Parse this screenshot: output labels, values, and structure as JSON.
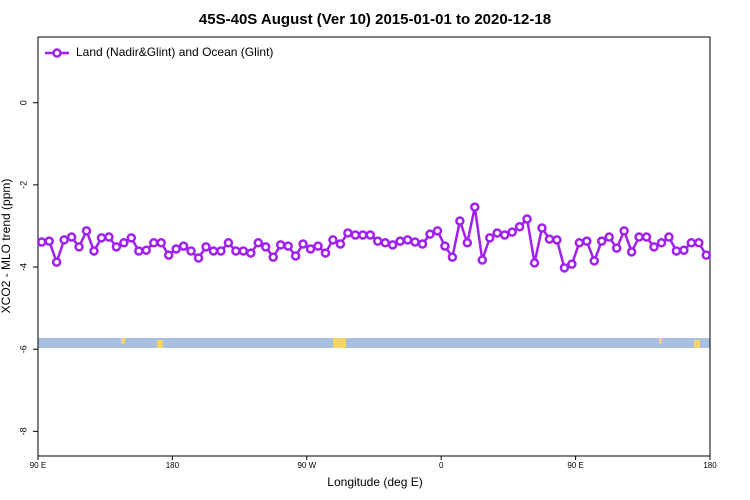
{
  "chart_data": {
    "type": "line",
    "title": "45S-40S August (Ver 10)   2015-01-01 to 2020-12-18",
    "x_label": "Longitude (deg E)",
    "y_label": "XCO2 - MLO trend (ppm)",
    "x": [
      92.5,
      97.5,
      102.5,
      107.5,
      112.5,
      117.5,
      122.5,
      127.5,
      132.5,
      137.5,
      142.5,
      147.5,
      152.5,
      157.5,
      162.5,
      167.5,
      172.5,
      177.5,
      182.5,
      187.5,
      192.5,
      197.5,
      202.5,
      207.5,
      212.5,
      217.5,
      222.5,
      227.5,
      232.5,
      237.5,
      242.5,
      247.5,
      252.5,
      257.5,
      262.5,
      267.5,
      272.5,
      277.5,
      282.5,
      287.5,
      292.5,
      297.5,
      302.5,
      307.5,
      312.5,
      317.5,
      322.5,
      327.5,
      332.5,
      337.5,
      342.5,
      347.5,
      352.5,
      357.5,
      362.5,
      367.5,
      372.5,
      377.5,
      382.5,
      387.5,
      392.5,
      397.5,
      402.5,
      407.5,
      412.5,
      417.5,
      422.5,
      427.5,
      432.5,
      437.5,
      442.5,
      447.5,
      452.5,
      457.5,
      462.5,
      467.5,
      472.5,
      477.5,
      482.5,
      487.5,
      492.5,
      497.5,
      502.5,
      507.5,
      512.5,
      517.5,
      522.5,
      527.5,
      532.5,
      537.5
    ],
    "series": [
      {
        "name": "Land (Nadir&Glint) and Ocean (Glint)",
        "color": "#a020f0",
        "values": [
          -3.39,
          -3.37,
          -3.88,
          -3.34,
          -3.27,
          -3.51,
          -3.12,
          -3.61,
          -3.29,
          -3.27,
          -3.51,
          -3.41,
          -3.29,
          -3.61,
          -3.59,
          -3.41,
          -3.41,
          -3.71,
          -3.56,
          -3.49,
          -3.61,
          -3.78,
          -3.51,
          -3.61,
          -3.61,
          -3.41,
          -3.61,
          -3.61,
          -3.66,
          -3.41,
          -3.51,
          -3.76,
          -3.46,
          -3.49,
          -3.73,
          -3.44,
          -3.56,
          -3.49,
          -3.66,
          -3.34,
          -3.44,
          -3.17,
          -3.22,
          -3.22,
          -3.22,
          -3.37,
          -3.41,
          -3.46,
          -3.37,
          -3.34,
          -3.39,
          -3.44,
          -3.2,
          -3.12,
          -3.49,
          -3.76,
          -2.88,
          -3.41,
          -2.54,
          -3.83,
          -3.29,
          -3.17,
          -3.22,
          -3.15,
          -3.02,
          -2.83,
          -3.9,
          -3.05,
          -3.32,
          -3.34,
          -4.02,
          -3.93,
          -3.41,
          -3.37,
          -3.85,
          -3.37,
          -3.27,
          -3.54,
          -3.12,
          -3.63,
          -3.27,
          -3.27,
          -3.51,
          -3.41,
          -3.27,
          -3.61,
          -3.59,
          -3.41,
          -3.41,
          -3.71
        ]
      }
    ],
    "xlim": [
      90,
      540
    ],
    "xticks": [
      {
        "value": 90,
        "label": "90 E"
      },
      180,
      {
        "value": 270,
        "label": "90 W"
      },
      {
        "value": 360,
        "label": "0"
      },
      {
        "value": 450,
        "label": "90 E"
      },
      {
        "value": 540,
        "label": "180"
      }
    ],
    "ylim": [
      -8.6,
      1.6
    ],
    "yticks": [
      0,
      -2,
      -4,
      -6,
      -8
    ],
    "legend": "top-left"
  }
}
